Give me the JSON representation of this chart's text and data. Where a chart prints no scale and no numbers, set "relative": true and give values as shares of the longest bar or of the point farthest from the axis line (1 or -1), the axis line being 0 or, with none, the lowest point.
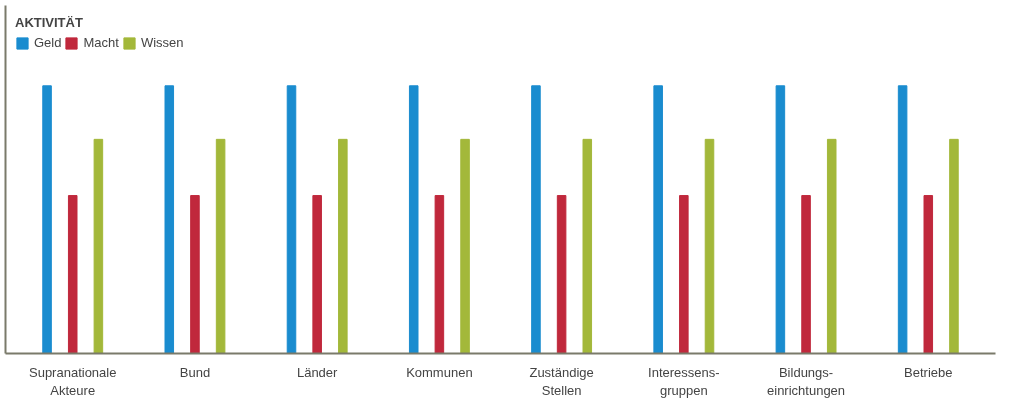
{
  "chart_data": {
    "type": "bar",
    "relative": true,
    "legend_title": "AKTIVITÄT",
    "legend": "top left",
    "categories": [
      "Supranationale\nAkteure",
      "Bund",
      "Länder",
      "Kommunen",
      "Zuständige\nStellen",
      "Interessens-\ngruppen",
      "Bildungs-\neinrichtungen",
      "Betriebe"
    ],
    "series": [
      {
        "name": "Geld",
        "color": "#1a8ccf",
        "values": [
          1,
          1,
          1,
          1,
          1,
          1,
          1,
          1
        ]
      },
      {
        "name": "Macht",
        "color": "#c0283c",
        "values": [
          0.59,
          0.59,
          0.59,
          0.59,
          0.59,
          0.59,
          0.59,
          0.59
        ]
      },
      {
        "name": "Wissen",
        "color": "#a3b83a",
        "values": [
          0.8,
          0.8,
          0.8,
          0.8,
          0.8,
          0.8,
          0.8,
          0.8
        ]
      }
    ]
  }
}
